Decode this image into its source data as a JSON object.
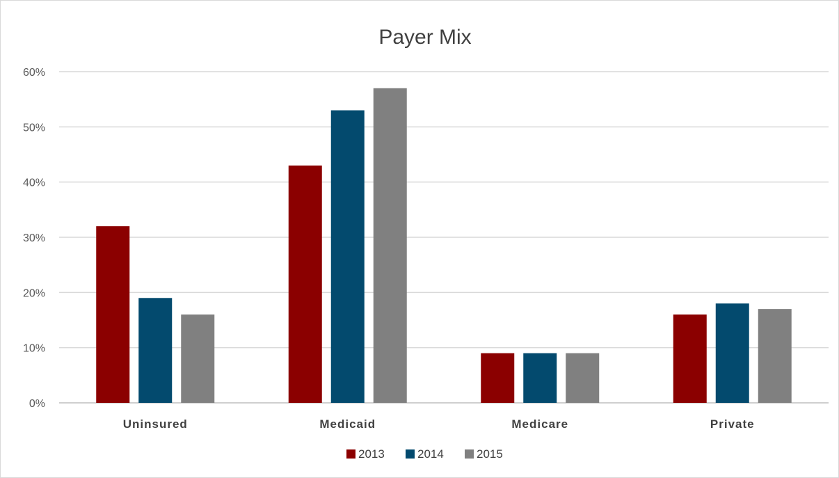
{
  "chart_data": {
    "type": "bar",
    "title": "Payer Mix",
    "xlabel": "",
    "ylabel": "",
    "categories": [
      "Uninsured",
      "Medicaid",
      "Medicare",
      "Private"
    ],
    "series": [
      {
        "name": "2013",
        "color": "#8b0000",
        "values": [
          32,
          43,
          9,
          16
        ]
      },
      {
        "name": "2014",
        "color": "#034a6e",
        "values": [
          19,
          53,
          9,
          18
        ]
      },
      {
        "name": "2015",
        "color": "#808080",
        "values": [
          16,
          57,
          9,
          17
        ]
      }
    ],
    "ylim": [
      0,
      60
    ],
    "y_ticks": [
      "0%",
      "10%",
      "20%",
      "30%",
      "40%",
      "50%",
      "60%"
    ],
    "grid": true,
    "legend_position": "bottom"
  }
}
